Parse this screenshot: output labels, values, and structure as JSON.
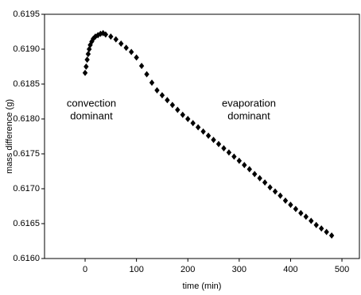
{
  "chart_data": {
    "type": "scatter",
    "x_label": "time (min)",
    "y_label": "mass difference (g)",
    "annotations": [
      [
        "convection",
        "dominant"
      ],
      [
        "evaporation",
        "dominant"
      ]
    ],
    "color": "#000000",
    "x": [
      0,
      2,
      4,
      6,
      8,
      10,
      13,
      16,
      20,
      25,
      30,
      35,
      40,
      50,
      60,
      70,
      80,
      90,
      100,
      110,
      120,
      130,
      140,
      150,
      160,
      170,
      180,
      190,
      200,
      210,
      220,
      230,
      240,
      250,
      260,
      270,
      280,
      290,
      300,
      310,
      320,
      330,
      340,
      350,
      360,
      370,
      380,
      390,
      400,
      410,
      420,
      430,
      440,
      450,
      460,
      470,
      480
    ],
    "values": [
      0.61866,
      0.61875,
      0.61885,
      0.61893,
      0.619,
      0.61906,
      0.61911,
      0.61915,
      0.61918,
      0.6192,
      0.61922,
      0.61923,
      0.61921,
      0.61918,
      0.61914,
      0.61908,
      0.61902,
      0.61896,
      0.61888,
      0.61876,
      0.61864,
      0.61852,
      0.61841,
      0.61834,
      0.61827,
      0.6182,
      0.61813,
      0.61806,
      0.618,
      0.61794,
      0.61788,
      0.61782,
      0.61776,
      0.6177,
      0.61764,
      0.61758,
      0.61752,
      0.61746,
      0.6174,
      0.61734,
      0.61728,
      0.61721,
      0.61715,
      0.61709,
      0.61702,
      0.61696,
      0.6169,
      0.61683,
      0.61677,
      0.61671,
      0.61665,
      0.6166,
      0.61654,
      0.61648,
      0.61643,
      0.61638,
      0.61633
    ],
    "xlim": [
      -79,
      534
    ],
    "xticks": [
      0,
      100,
      200,
      300,
      400,
      500
    ],
    "ylim": [
      0.616,
      0.6195
    ],
    "yticks": [
      {
        "value": 0.616,
        "label": "0.6160"
      },
      0.6165,
      {
        "value": 0.617,
        "label": "0.6170"
      },
      0.6175,
      {
        "value": 0.618,
        "label": "0.6180"
      },
      0.6185,
      {
        "value": 0.619,
        "label": "0.6190"
      },
      0.6195
    ]
  }
}
